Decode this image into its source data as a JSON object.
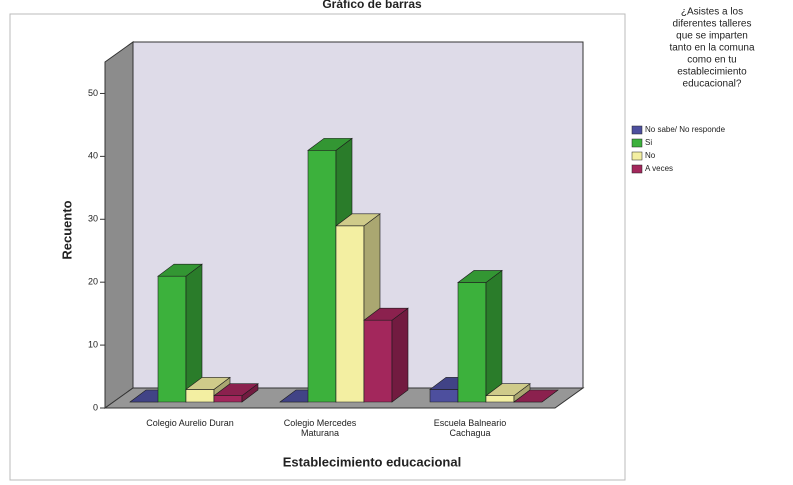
{
  "chart_data": {
    "type": "bar3d",
    "title": "Gráfico de barras",
    "y_label": "Recuento",
    "x_label": "Establecimiento educacional",
    "legend_title": [
      "¿Asistes a los",
      "diferentes talleres",
      "que se imparten",
      "tanto en la comuna",
      "como en tu",
      "establecimiento",
      "educacional?"
    ],
    "categories": [
      "Colegio Aurelio Duran",
      "Colegio Mercedes Maturana",
      "Escuela Balneario Cachagua"
    ],
    "series": [
      {
        "name": "No sabe/ No responde",
        "color": "#4d4f9e",
        "values": [
          0,
          0,
          2
        ]
      },
      {
        "name": "Si",
        "color": "#3cb13c",
        "values": [
          20,
          40,
          19
        ]
      },
      {
        "name": "No",
        "color": "#f3efa2",
        "values": [
          2,
          28,
          1
        ]
      },
      {
        "name": "A veces",
        "color": "#a3275c",
        "values": [
          1,
          13,
          0
        ]
      }
    ],
    "ylim": [
      0,
      55
    ],
    "yticks": [
      0,
      10,
      20,
      30,
      40,
      50
    ]
  }
}
